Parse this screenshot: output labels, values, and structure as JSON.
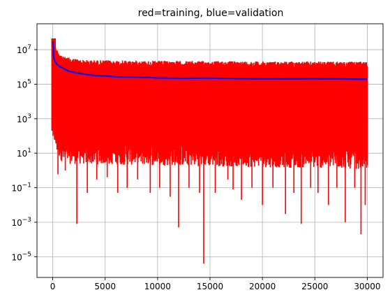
{
  "chart_data": {
    "type": "line",
    "title": "red=training, blue=validation",
    "xlabel": "",
    "ylabel": "",
    "xlim": [
      -1500,
      31500
    ],
    "ylim_log10": [
      -6.2,
      8.5
    ],
    "y_scale": "log",
    "grid": true,
    "legend": "none",
    "x_ticks": [
      {
        "value": 0,
        "label": "0"
      },
      {
        "value": 5000,
        "label": "5000"
      },
      {
        "value": 10000,
        "label": "10000"
      },
      {
        "value": 15000,
        "label": "15000"
      },
      {
        "value": 20000,
        "label": "20000"
      },
      {
        "value": 25000,
        "label": "25000"
      },
      {
        "value": 30000,
        "label": "30000"
      }
    ],
    "y_ticks": [
      {
        "value": 10000000.0,
        "base": "10",
        "exp": "7"
      },
      {
        "value": 100000.0,
        "base": "10",
        "exp": "5"
      },
      {
        "value": 1000.0,
        "base": "10",
        "exp": "3"
      },
      {
        "value": 10.0,
        "base": "10",
        "exp": "1"
      },
      {
        "value": 0.1,
        "base": "10",
        "exp": "−1"
      },
      {
        "value": 0.001,
        "base": "10",
        "exp": "−3"
      },
      {
        "value": 1e-05,
        "base": "10",
        "exp": "−5"
      }
    ],
    "series": [
      {
        "color": "#ff0000",
        "note": "training: noisy band; upper envelope ~2e6, lower envelope ~3e0, with deep downward spikes",
        "upper_envelope": {
          "x": [
            0,
            300,
            1000,
            3000,
            10000,
            30000
          ],
          "y_log10": [
            7.6,
            7.1,
            6.6,
            6.4,
            6.35,
            6.3
          ]
        },
        "lower_envelope": {
          "x": [
            0,
            300,
            1000,
            30000
          ],
          "y_log10": [
            2.5,
            1.5,
            0.8,
            0.5
          ]
        },
        "dips": [
          {
            "x": 30,
            "y": 20000000
          },
          {
            "x": 500,
            "y": 0.6
          },
          {
            "x": 1200,
            "y": 1.0
          },
          {
            "x": 2300,
            "y": 0.0008
          },
          {
            "x": 3300,
            "y": 0.05
          },
          {
            "x": 4200,
            "y": 0.3
          },
          {
            "x": 5200,
            "y": 0.4
          },
          {
            "x": 6200,
            "y": 0.05
          },
          {
            "x": 7100,
            "y": 0.1
          },
          {
            "x": 8100,
            "y": 0.3
          },
          {
            "x": 9300,
            "y": 0.05
          },
          {
            "x": 10200,
            "y": 0.1
          },
          {
            "x": 11200,
            "y": 0.03
          },
          {
            "x": 12000,
            "y": 0.0005
          },
          {
            "x": 13000,
            "y": 0.1
          },
          {
            "x": 14000,
            "y": 0.05
          },
          {
            "x": 14400,
            "y": 4e-06
          },
          {
            "x": 15500,
            "y": 0.05
          },
          {
            "x": 16700,
            "y": 0.3
          },
          {
            "x": 17200,
            "y": 0.08
          },
          {
            "x": 18000,
            "y": 0.02
          },
          {
            "x": 19000,
            "y": 0.1
          },
          {
            "x": 20000,
            "y": 0.01
          },
          {
            "x": 21000,
            "y": 0.1
          },
          {
            "x": 22200,
            "y": 0.003
          },
          {
            "x": 23000,
            "y": 0.05
          },
          {
            "x": 23700,
            "y": 0.0008
          },
          {
            "x": 24600,
            "y": 0.1
          },
          {
            "x": 25300,
            "y": 0.05
          },
          {
            "x": 26300,
            "y": 0.01
          },
          {
            "x": 27100,
            "y": 0.1
          },
          {
            "x": 27900,
            "y": 0.001
          },
          {
            "x": 28800,
            "y": 0.1
          },
          {
            "x": 29400,
            "y": 0.0002
          },
          {
            "x": 29800,
            "y": 0.01
          }
        ]
      },
      {
        "color": "#0000ff",
        "note": "validation: smooth decreasing curve",
        "x": [
          0,
          50,
          100,
          200,
          400,
          700,
          1000,
          1500,
          2000,
          3000,
          4000,
          5000,
          6000,
          8000,
          10000,
          12000,
          15000,
          20000,
          25000,
          30000
        ],
        "y": [
          30000000,
          12000000,
          3500000,
          2200000,
          1400000,
          1000000,
          800000,
          600000,
          480000,
          370000,
          320000,
          290000,
          270000,
          250000,
          235000,
          225000,
          215000,
          210000,
          205000,
          200000
        ]
      }
    ]
  }
}
